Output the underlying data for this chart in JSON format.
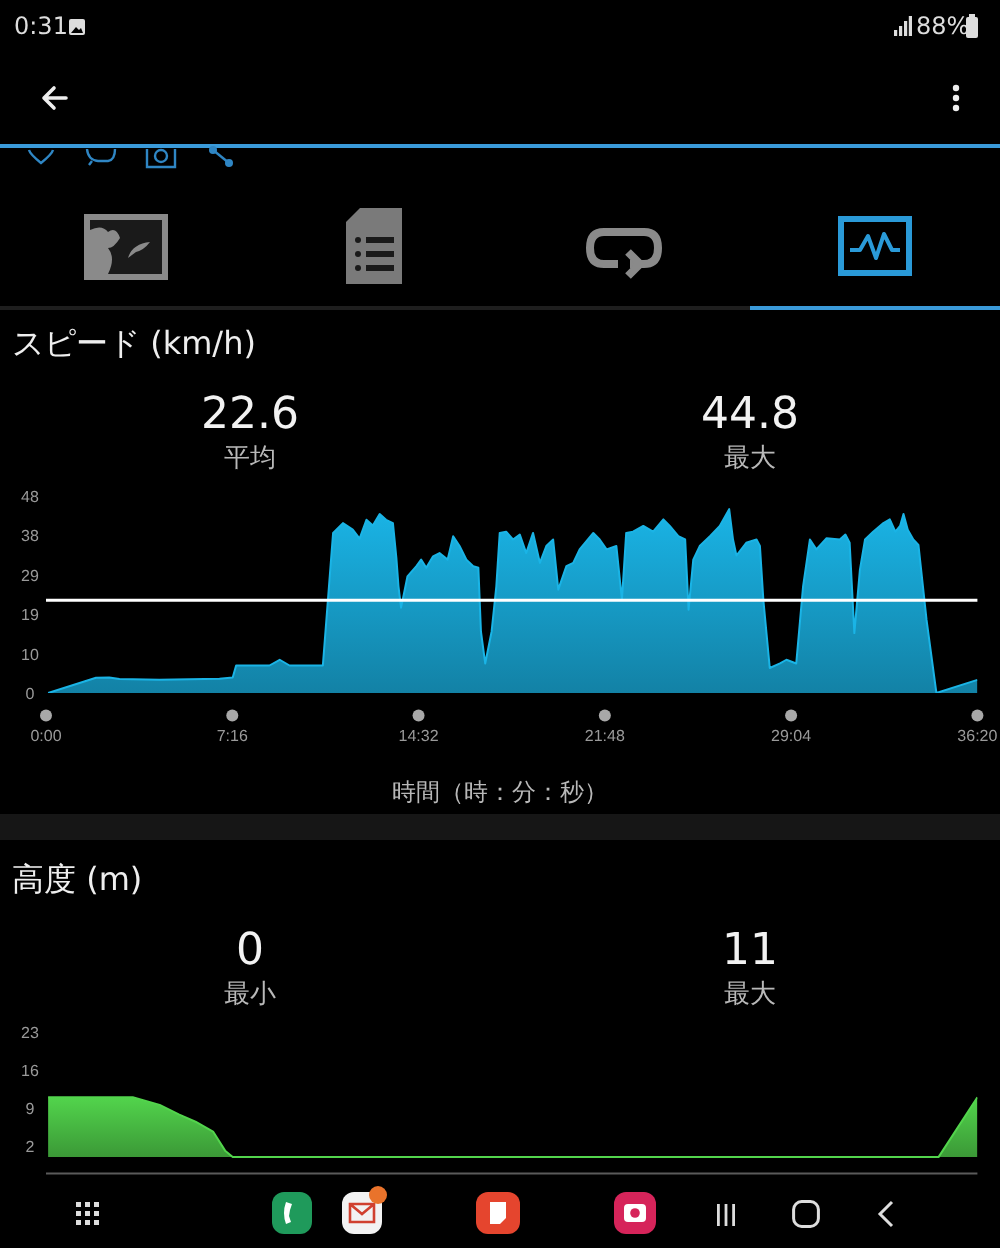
{
  "chart_data": [
    {
      "type": "area",
      "title": "スピード (km/h)",
      "xlabel": "時間（時：分：秒）",
      "x": [
        5,
        117,
        148,
        172,
        265,
        406,
        437,
        445,
        523,
        547,
        570,
        625,
        648,
        672,
        695,
        718,
        734,
        750,
        765,
        781,
        796,
        812,
        820,
        825,
        831,
        838,
        846,
        867,
        878,
        890,
        906,
        921,
        940,
        953,
        968,
        984,
        1000,
        1012,
        1018,
        1028,
        1043,
        1054,
        1062,
        1077,
        1093,
        1109,
        1124,
        1140,
        1156,
        1171,
        1187,
        1199,
        1218,
        1234,
        1249,
        1281,
        1296,
        1312,
        1335,
        1348,
        1358,
        1374,
        1398,
        1421,
        1445,
        1460,
        1480,
        1496,
        1504,
        1515,
        1530,
        1554,
        1577,
        1599,
        1608,
        1616,
        1639,
        1663,
        1671,
        1679,
        1694,
        1718,
        1733,
        1756,
        1772,
        1788,
        1803,
        1827,
        1858,
        1871,
        1881,
        1892,
        1905,
        1917,
        1936,
        1960,
        1975,
        1988,
        1999,
        2007,
        2017,
        2030,
        2042,
        2061,
        2084,
        2180
      ],
      "series": [
        {
          "color": "#1ab4e6",
          "values": [
            0,
            3.7,
            3.8,
            3.4,
            3.2,
            3.5,
            3.8,
            6.7,
            6.7,
            8.1,
            6.7,
            6.7,
            6.7,
            39,
            41.4,
            39.8,
            37.6,
            42.2,
            40.8,
            43.6,
            42.2,
            41.4,
            33,
            26,
            20.8,
            24.3,
            28.4,
            30.9,
            32.5,
            30.5,
            33.3,
            34.1,
            32.5,
            38.2,
            35.8,
            32.5,
            30.9,
            30.5,
            15,
            7.2,
            15,
            26,
            39,
            39.3,
            37.4,
            38.6,
            34.1,
            39,
            31.7,
            35.8,
            37.4,
            25.2,
            30.9,
            31.7,
            35,
            39,
            37.4,
            35,
            35.8,
            22.7,
            39,
            39.3,
            40.7,
            39.3,
            42.3,
            40.7,
            38.2,
            37.4,
            20.3,
            32.5,
            35.8,
            38.2,
            40.7,
            44.8,
            37.4,
            33.5,
            36.6,
            37.4,
            35.8,
            22.7,
            6.1,
            7.2,
            8.1,
            7.2,
            26,
            37.4,
            35,
            37.7,
            37.4,
            38.6,
            36.6,
            14.6,
            30,
            37.4,
            39.3,
            41.4,
            42.3,
            39.3,
            40.7,
            43.6,
            39.8,
            37.4,
            36.1,
            17.8,
            0,
            3.2
          ]
        }
      ],
      "xlim": [
        0,
        2180
      ],
      "xticks": [
        {
          "value": 0,
          "label": "0:00"
        },
        {
          "value": 436,
          "label": "7:16"
        },
        {
          "value": 872,
          "label": "14:32"
        },
        {
          "value": 1308,
          "label": "21:48"
        },
        {
          "value": 1744,
          "label": "29:04"
        },
        {
          "value": 2180,
          "label": "36:20"
        }
      ],
      "ylim": [
        0,
        48
      ],
      "yticks": [
        0,
        {
          "value": 9.6,
          "label": "10"
        },
        {
          "value": 19.2,
          "label": "19"
        },
        {
          "value": 28.8,
          "label": "29"
        },
        {
          "value": 38.4,
          "label": "38"
        },
        48
      ],
      "ref_lines": [
        {
          "axis": "y",
          "value": 22.6,
          "color": "#ffffff"
        }
      ],
      "annotations": [
        "0:31",
        "88%",
        "22.6",
        "平均",
        "44.8",
        "最大"
      ]
    },
    {
      "type": "area",
      "title": "高度 (m)",
      "x": [
        5,
        203,
        266,
        312,
        350,
        391,
        420,
        437,
        2089,
        2180
      ],
      "series": [
        {
          "color": "#52d44c",
          "values": [
            11,
            11,
            9.6,
            7.8,
            6.5,
            4.7,
            1.1,
            0,
            0,
            11
          ]
        }
      ],
      "xlim": [
        0,
        2180
      ],
      "ylim": [
        -3,
        23
      ],
      "yticks": [
        2,
        9,
        16,
        23
      ],
      "tick_labels": "y",
      "annotations": [
        "0",
        "最小",
        "11",
        "最大"
      ]
    }
  ]
}
